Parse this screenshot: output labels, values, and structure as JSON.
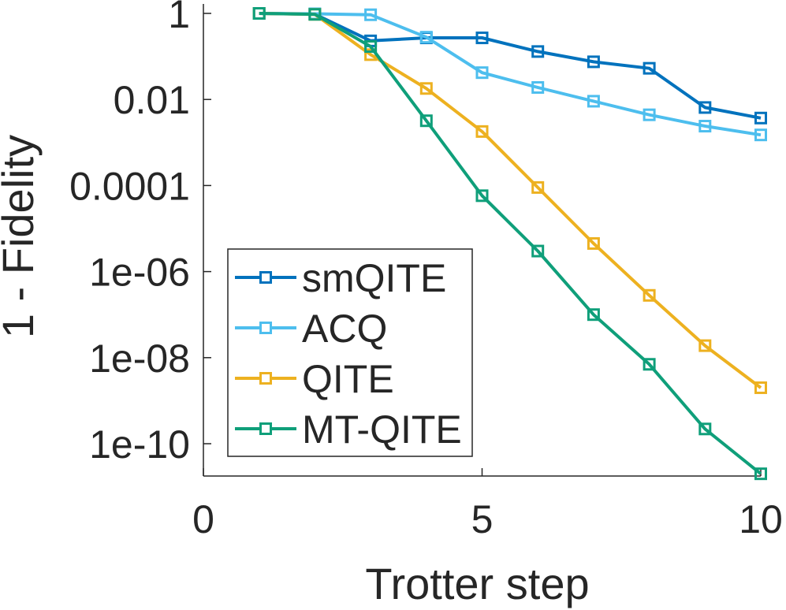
{
  "chart_data": {
    "type": "line",
    "title": "",
    "xlabel": "Trotter step",
    "ylabel": "1 - Fidelity",
    "xscale": "linear",
    "yscale": "log",
    "xlim": [
      0,
      10
    ],
    "ylim": [
      1.4e-11,
      2.0
    ],
    "x_ticks": [
      0,
      5,
      10
    ],
    "x_tick_labels": [
      "0",
      "5",
      "10"
    ],
    "y_ticks": [
      1e-10,
      1e-08,
      1e-06,
      0.0001,
      0.01,
      1
    ],
    "y_tick_labels": [
      "1e-10",
      "1e-08",
      "1e-06",
      "0.0001",
      "0.01",
      "1"
    ],
    "grid": false,
    "legend": {
      "position": "lower-left",
      "entries": [
        "smQITE",
        "ACQ",
        "QITE",
        "MT-QITE"
      ]
    },
    "x": [
      1,
      2,
      3,
      4,
      5,
      6,
      7,
      8,
      9,
      10
    ],
    "series": [
      {
        "name": "smQITE",
        "color": "#0072BD",
        "marker": "square",
        "values": [
          1.0,
          0.96,
          0.23,
          0.27,
          0.27,
          0.13,
          0.075,
          0.053,
          0.0065,
          0.0037
        ]
      },
      {
        "name": "ACQ",
        "color": "#4DBEEE",
        "marker": "square",
        "values": [
          1.0,
          0.98,
          0.93,
          0.28,
          0.042,
          0.019,
          0.0091,
          0.0044,
          0.0024,
          0.0015
        ]
      },
      {
        "name": "QITE",
        "color": "#EDB120",
        "marker": "square",
        "values": [
          1.0,
          0.95,
          0.11,
          0.018,
          0.0018,
          9e-05,
          4.5e-06,
          2.8e-07,
          1.9e-08,
          2e-09
        ]
      },
      {
        "name": "MT-QITE",
        "color": "#0F9F7A",
        "marker": "square",
        "values": [
          1.0,
          0.95,
          0.17,
          0.0032,
          5.8e-05,
          3e-06,
          1e-07,
          7e-09,
          2.2e-10,
          2e-11
        ]
      }
    ]
  }
}
